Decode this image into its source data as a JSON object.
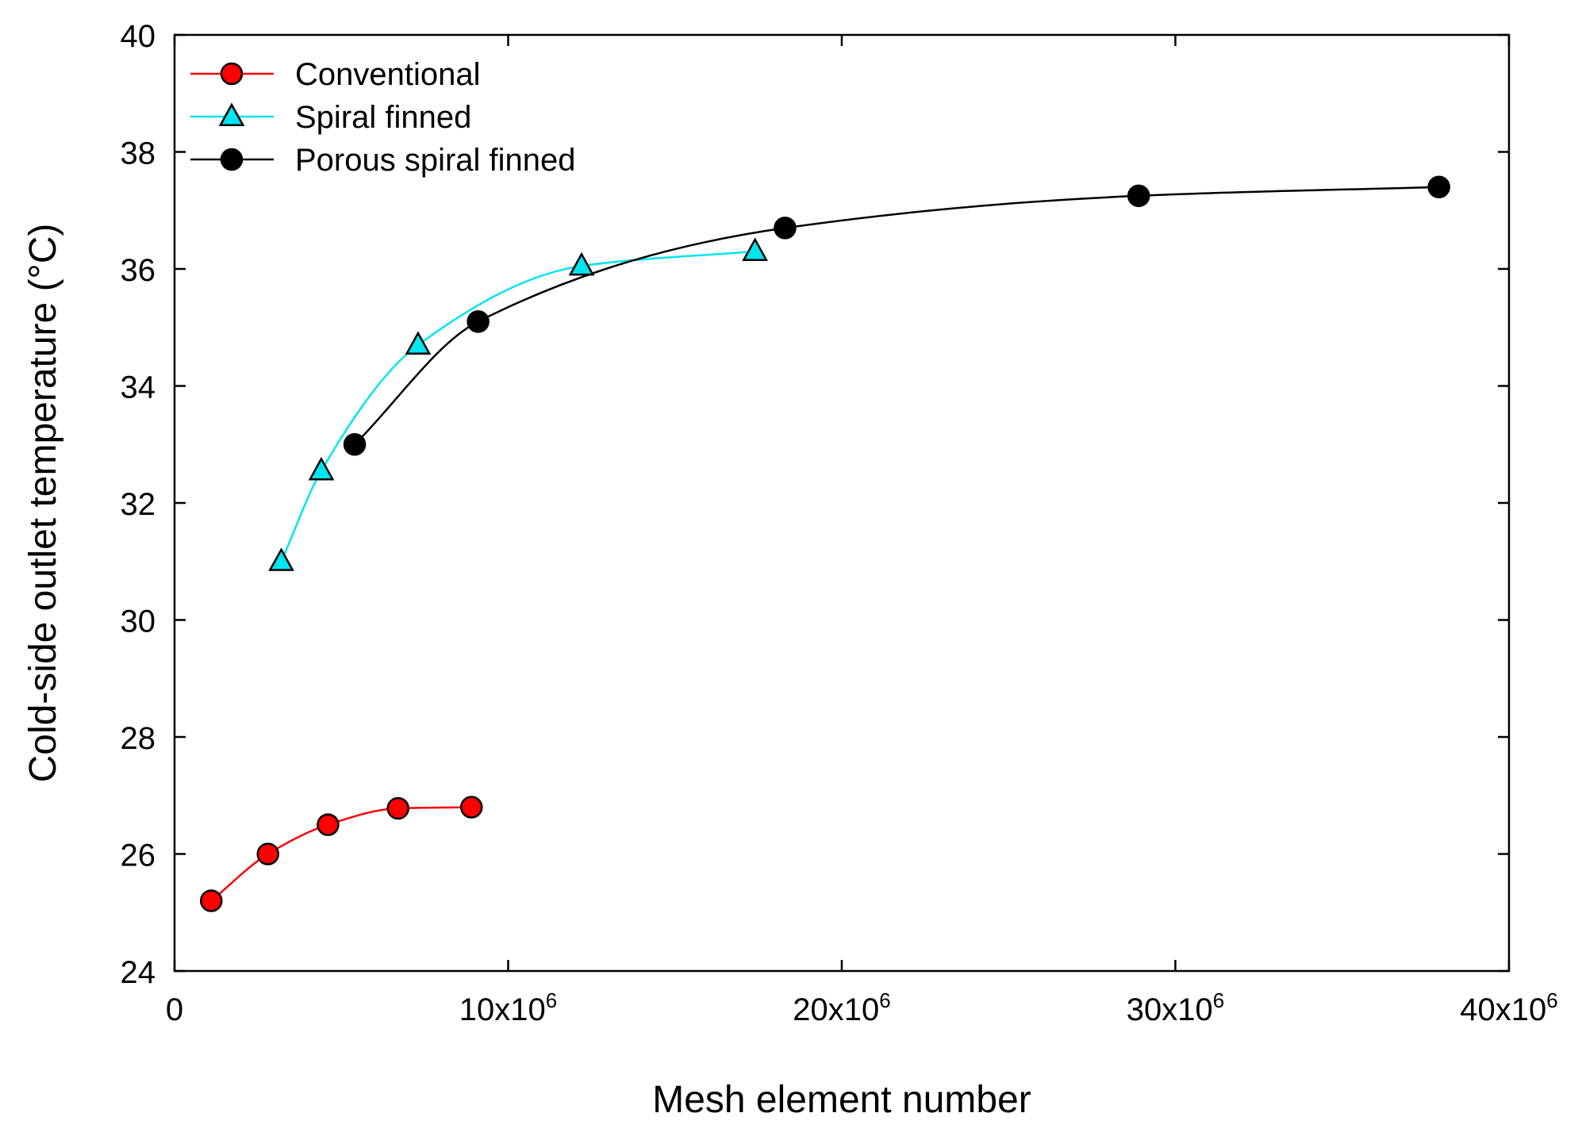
{
  "chart_data": {
    "type": "line",
    "title": "",
    "xlabel": "Mesh element number",
    "ylabel": "Cold-side outlet temperature (°C)",
    "xlim": [
      0,
      40000000
    ],
    "ylim": [
      24,
      40
    ],
    "grid": false,
    "legend_position": "top-left",
    "x_ticks": [
      {
        "value": 0,
        "base": "0",
        "exp": ""
      },
      {
        "value": 10000000,
        "base": "10x10",
        "exp": "6"
      },
      {
        "value": 20000000,
        "base": "20x10",
        "exp": "6"
      },
      {
        "value": 30000000,
        "base": "30x10",
        "exp": "6"
      },
      {
        "value": 40000000,
        "base": "40x10",
        "exp": "6"
      }
    ],
    "y_ticks": [
      24,
      26,
      28,
      30,
      32,
      34,
      36,
      38,
      40
    ],
    "series": [
      {
        "name": "Conventional",
        "marker": "circle",
        "line_color": "#ff0000",
        "marker_fill": "#ff0000",
        "x": [
          1100000,
          2800000,
          4600000,
          6700000,
          8900000
        ],
        "y": [
          25.2,
          26.0,
          26.5,
          26.78,
          26.8
        ]
      },
      {
        "name": "Spiral finned",
        "marker": "triangle",
        "line_color": "#00e5ee",
        "marker_fill": "#00e5ee",
        "x": [
          3200000,
          4400000,
          7300000,
          12200000,
          17400000
        ],
        "y": [
          31.0,
          32.55,
          34.7,
          36.05,
          36.3
        ]
      },
      {
        "name": "Porous spiral finned",
        "marker": "circle",
        "line_color": "#000000",
        "marker_fill": "#000000",
        "x": [
          5400000,
          9100000,
          18300000,
          28900000,
          37900000
        ],
        "y": [
          33.0,
          35.1,
          36.7,
          37.25,
          37.4
        ]
      }
    ]
  }
}
